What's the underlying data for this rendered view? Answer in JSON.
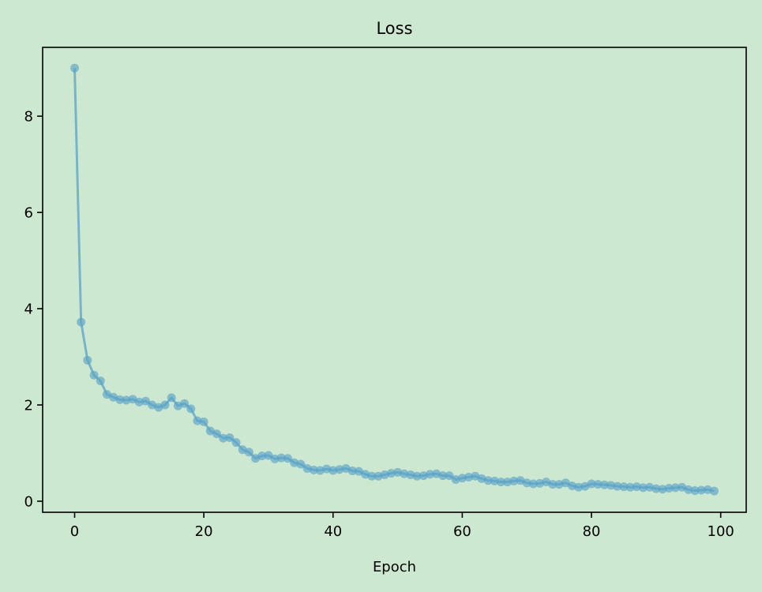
{
  "chart_data": {
    "type": "line",
    "title": "Loss",
    "xlabel": "Epoch",
    "ylabel": "",
    "xlim": [
      -4.95,
      103.95
    ],
    "ylim": [
      -0.23,
      9.43
    ],
    "xticks": [
      0,
      20,
      40,
      60,
      80,
      100
    ],
    "yticks": [
      0,
      2,
      4,
      6,
      8
    ],
    "grid": false,
    "colors": {
      "background": "#cde8d0",
      "series": "#5ba3c7",
      "axes": "#000000"
    },
    "series": [
      {
        "x": [
          0,
          1,
          2,
          3,
          4,
          5,
          6,
          7,
          8,
          9,
          10,
          11,
          12,
          13,
          14,
          15,
          16,
          17,
          18,
          19,
          20,
          21,
          22,
          23,
          24,
          25,
          26,
          27,
          28,
          29,
          30,
          31,
          32,
          33,
          34,
          35,
          36,
          37,
          38,
          39,
          40,
          41,
          42,
          43,
          44,
          45,
          46,
          47,
          48,
          49,
          50,
          51,
          52,
          53,
          54,
          55,
          56,
          57,
          58,
          59,
          60,
          61,
          62,
          63,
          64,
          65,
          66,
          67,
          68,
          69,
          70,
          71,
          72,
          73,
          74,
          75,
          76,
          77,
          78,
          79,
          80,
          81,
          82,
          83,
          84,
          85,
          86,
          87,
          88,
          89,
          90,
          91,
          92,
          93,
          94,
          95,
          96,
          97,
          98,
          99
        ],
        "values": [
          9.0,
          3.72,
          2.93,
          2.62,
          2.5,
          2.22,
          2.16,
          2.11,
          2.1,
          2.12,
          2.06,
          2.08,
          2.0,
          1.95,
          2.0,
          2.15,
          1.98,
          2.03,
          1.92,
          1.67,
          1.65,
          1.46,
          1.4,
          1.31,
          1.32,
          1.22,
          1.07,
          1.02,
          0.89,
          0.94,
          0.95,
          0.88,
          0.9,
          0.89,
          0.8,
          0.77,
          0.68,
          0.65,
          0.64,
          0.67,
          0.64,
          0.66,
          0.68,
          0.63,
          0.62,
          0.56,
          0.52,
          0.52,
          0.55,
          0.58,
          0.6,
          0.57,
          0.55,
          0.52,
          0.53,
          0.56,
          0.57,
          0.53,
          0.53,
          0.45,
          0.48,
          0.5,
          0.52,
          0.47,
          0.43,
          0.42,
          0.4,
          0.4,
          0.42,
          0.43,
          0.38,
          0.36,
          0.37,
          0.4,
          0.35,
          0.35,
          0.38,
          0.32,
          0.29,
          0.31,
          0.36,
          0.35,
          0.34,
          0.33,
          0.31,
          0.3,
          0.29,
          0.3,
          0.28,
          0.29,
          0.26,
          0.25,
          0.27,
          0.28,
          0.29,
          0.24,
          0.22,
          0.23,
          0.24,
          0.21
        ]
      }
    ]
  }
}
